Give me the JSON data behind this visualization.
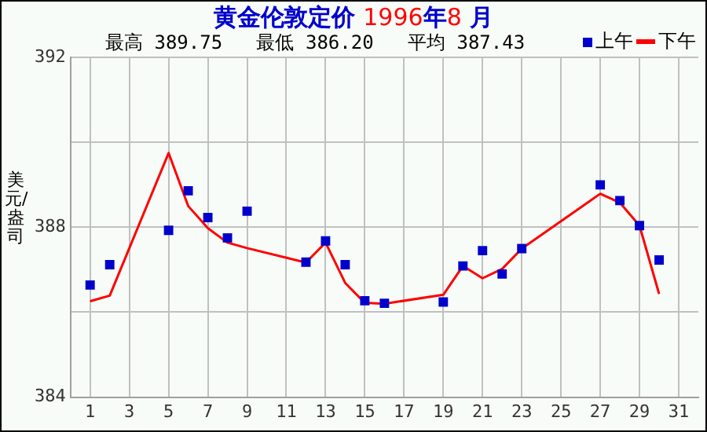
{
  "chart_data": {
    "type": "line",
    "title": "黄金伦敦定价 1996年8 月",
    "subtitle": "最高 389.75   最低 386.20   平均 387.43",
    "ylabel": "美元/盎司",
    "x": [
      1,
      2,
      5,
      6,
      7,
      8,
      9,
      12,
      13,
      14,
      15,
      16,
      19,
      20,
      21,
      22,
      23,
      27,
      28,
      29,
      30
    ],
    "series": [
      {
        "name": "上午",
        "type": "scatter",
        "marker": "square",
        "color": "#0000cc",
        "values": [
          386.64,
          387.12,
          387.93,
          388.86,
          388.23,
          387.75,
          388.38,
          387.18,
          387.68,
          387.12,
          386.27,
          386.21,
          386.24,
          387.09,
          387.45,
          386.9,
          387.5,
          389.0,
          388.63,
          388.04,
          387.23
        ]
      },
      {
        "name": "下午",
        "marker": "none",
        "line_style": "solid",
        "color": "#ff0000",
        "values": [
          386.26,
          386.39,
          389.75,
          388.5,
          387.98,
          387.64,
          387.51,
          387.17,
          387.64,
          386.69,
          386.22,
          386.2,
          386.41,
          387.09,
          386.8,
          387.02,
          387.5,
          388.79,
          388.58,
          388.04,
          386.43
        ]
      }
    ],
    "xlim": [
      0,
      32
    ],
    "xticks": [
      1,
      3,
      5,
      7,
      9,
      11,
      13,
      15,
      17,
      19,
      21,
      23,
      25,
      27,
      29,
      31
    ],
    "ylim": [
      384,
      392
    ],
    "yticks": [
      384,
      {
        "value": 386,
        "label": null
      },
      388,
      {
        "value": 390,
        "label": null
      },
      392
    ],
    "grid": true,
    "legend": "top right"
  }
}
